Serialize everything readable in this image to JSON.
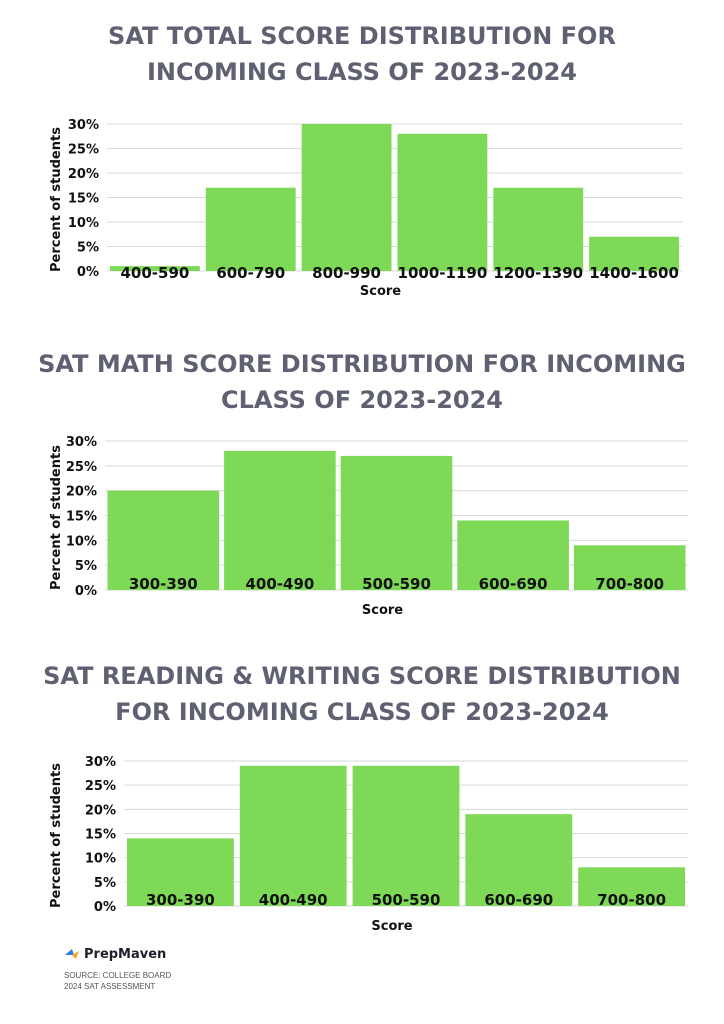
{
  "colors": {
    "bar": "#7ed957",
    "title": "#5f6172",
    "grid": "#d9d9d9",
    "text": "#111111"
  },
  "chart_data": [
    {
      "type": "bar",
      "title_lines": [
        "SAT TOTAL SCORE DISTRIBUTION FOR",
        "INCOMING CLASS OF 2023-2024"
      ],
      "categories": [
        "400-590",
        "600-790",
        "800-990",
        "1000-1190",
        "1200-1390",
        "1400-1600"
      ],
      "values": [
        1,
        17,
        30,
        28,
        17,
        7
      ],
      "xlabel": "Score",
      "ylabel": "Percent of students",
      "ylim": [
        0,
        30
      ],
      "yticks": [
        "0%",
        "5%",
        "10%",
        "15%",
        "20%",
        "25%",
        "30%"
      ],
      "grid": true
    },
    {
      "type": "bar",
      "title_lines": [
        "SAT MATH SCORE DISTRIBUTION FOR INCOMING",
        "CLASS OF 2023-2024"
      ],
      "categories": [
        "300-390",
        "400-490",
        "500-590",
        "600-690",
        "700-800"
      ],
      "values": [
        20,
        28,
        27,
        14,
        9
      ],
      "xlabel": "Score",
      "ylabel": "Percent of students",
      "ylim": [
        0,
        30
      ],
      "yticks": [
        "0%",
        "5%",
        "10%",
        "15%",
        "20%",
        "25%",
        "30%"
      ],
      "grid": true
    },
    {
      "type": "bar",
      "title_lines": [
        "SAT READING & WRITING SCORE DISTRIBUTION",
        "FOR INCOMING CLASS OF 2023-2024"
      ],
      "categories": [
        "300-390",
        "400-490",
        "500-590",
        "600-690",
        "700-800"
      ],
      "values": [
        14,
        29,
        29,
        19,
        8
      ],
      "xlabel": "Score",
      "ylabel": "Percent of students",
      "ylim": [
        0,
        30
      ],
      "yticks": [
        "0%",
        "5%",
        "10%",
        "15%",
        "20%",
        "25%",
        "30%"
      ],
      "grid": true
    }
  ],
  "footer": {
    "brand": "PrepMaven",
    "brand_icon": "prepmaven-logo-icon",
    "source_lines": [
      "SOURCE: COLLEGE BOARD",
      "2024 SAT ASSESSMENT"
    ]
  }
}
